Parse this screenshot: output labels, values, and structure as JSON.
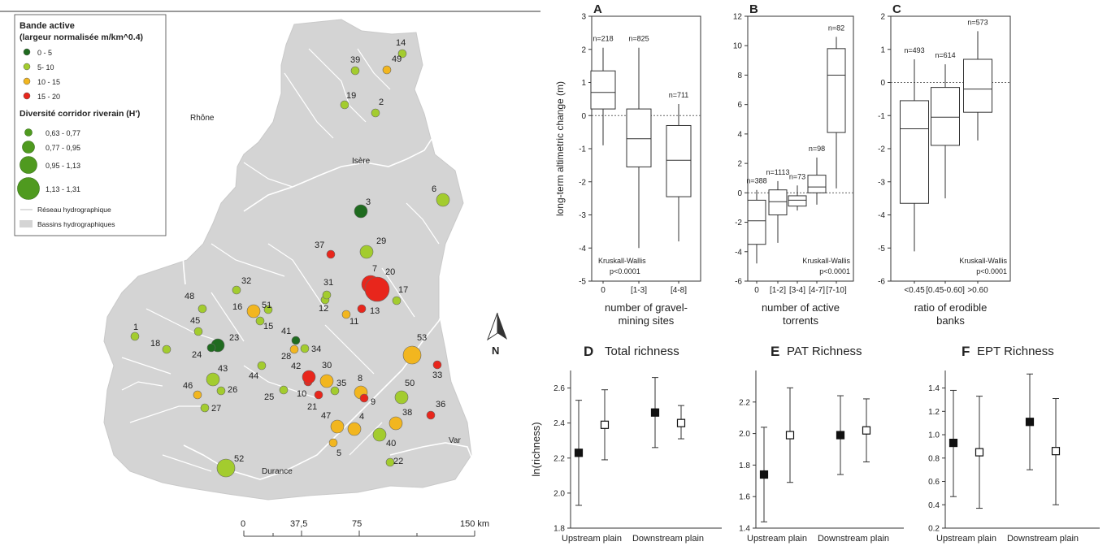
{
  "map": {
    "legend": {
      "title1": "Bande active",
      "title2": "(largeur normalisée m/km^0.4)",
      "color_items": [
        {
          "label": "0 - 5",
          "color": "#1f6b1f"
        },
        {
          "label": "5- 10",
          "color": "#a3cc2e"
        },
        {
          "label": "10 - 15",
          "color": "#f2b61f"
        },
        {
          "label": "15 - 20",
          "color": "#e8261c"
        }
      ],
      "size_title": "Diversité corridor riverain (H')",
      "size_items": [
        "0,63 - 0,77",
        "0,77 - 0,95",
        "0,95 - 1,13",
        "1,13 - 1,31"
      ],
      "network_label": "Réseau hydrographique",
      "basin_label": "Bassins hydrographiques"
    },
    "rivers": [
      "Rhône",
      "Isère",
      "Durance",
      "Var"
    ],
    "scale": {
      "ticks": [
        "0",
        "37,5",
        "75",
        "150 km"
      ]
    },
    "north": "N",
    "sites": [
      {
        "id": "1",
        "c": 1,
        "s": 0
      },
      {
        "id": "2",
        "c": 1,
        "s": 0
      },
      {
        "id": "3",
        "c": 0,
        "s": 1
      },
      {
        "id": "4",
        "c": 2,
        "s": 1
      },
      {
        "id": "5",
        "c": 2,
        "s": 0
      },
      {
        "id": "6",
        "c": 1,
        "s": 1
      },
      {
        "id": "7",
        "c": 3,
        "s": 2
      },
      {
        "id": "8",
        "c": 2,
        "s": 1
      },
      {
        "id": "9",
        "c": 3,
        "s": 0
      },
      {
        "id": "10",
        "c": 3,
        "s": 0
      },
      {
        "id": "11",
        "c": 2,
        "s": 0
      },
      {
        "id": "12",
        "c": 1,
        "s": 0
      },
      {
        "id": "13",
        "c": 3,
        "s": 0
      },
      {
        "id": "14",
        "c": 1,
        "s": 0
      },
      {
        "id": "15",
        "c": 1,
        "s": 0
      },
      {
        "id": "16",
        "c": 2,
        "s": 1
      },
      {
        "id": "17",
        "c": 1,
        "s": 0
      },
      {
        "id": "18",
        "c": 1,
        "s": 0
      },
      {
        "id": "19",
        "c": 1,
        "s": 0
      },
      {
        "id": "20",
        "c": 3,
        "s": 3
      },
      {
        "id": "21",
        "c": 3,
        "s": 0
      },
      {
        "id": "22",
        "c": 1,
        "s": 0
      },
      {
        "id": "23",
        "c": 0,
        "s": 1
      },
      {
        "id": "24",
        "c": 0,
        "s": 0
      },
      {
        "id": "25",
        "c": 1,
        "s": 0
      },
      {
        "id": "26",
        "c": 1,
        "s": 0
      },
      {
        "id": "27",
        "c": 1,
        "s": 0
      },
      {
        "id": "28",
        "c": 2,
        "s": 0
      },
      {
        "id": "29",
        "c": 1,
        "s": 1
      },
      {
        "id": "30",
        "c": 2,
        "s": 1
      },
      {
        "id": "31",
        "c": 1,
        "s": 0
      },
      {
        "id": "32",
        "c": 1,
        "s": 0
      },
      {
        "id": "33",
        "c": 3,
        "s": 0
      },
      {
        "id": "34",
        "c": 1,
        "s": 0
      },
      {
        "id": "35",
        "c": 1,
        "s": 0
      },
      {
        "id": "36",
        "c": 3,
        "s": 0
      },
      {
        "id": "37",
        "c": 3,
        "s": 0
      },
      {
        "id": "38",
        "c": 2,
        "s": 1
      },
      {
        "id": "39",
        "c": 1,
        "s": 0
      },
      {
        "id": "40",
        "c": 1,
        "s": 1
      },
      {
        "id": "41",
        "c": 0,
        "s": 0
      },
      {
        "id": "42",
        "c": 3,
        "s": 1
      },
      {
        "id": "43",
        "c": 1,
        "s": 1
      },
      {
        "id": "44",
        "c": 1,
        "s": 0
      },
      {
        "id": "45",
        "c": 1,
        "s": 0
      },
      {
        "id": "46",
        "c": 2,
        "s": 0
      },
      {
        "id": "47",
        "c": 2,
        "s": 1
      },
      {
        "id": "48",
        "c": 1,
        "s": 0
      },
      {
        "id": "49",
        "c": 2,
        "s": 0
      },
      {
        "id": "50",
        "c": 1,
        "s": 1
      },
      {
        "id": "51",
        "c": 1,
        "s": 0
      },
      {
        "id": "52",
        "c": 1,
        "s": 2
      },
      {
        "id": "53",
        "c": 2,
        "s": 2
      }
    ]
  },
  "chart_data": [
    {
      "panel": "A",
      "type": "box",
      "ylabel": "long-term altimetric change (m)",
      "xlabel": "number of gravel-mining sites",
      "ylim": [
        -5,
        3
      ],
      "yticks": [
        -5,
        -4,
        -3,
        -2,
        -1,
        0,
        1,
        2,
        3
      ],
      "reference_line": 0,
      "stat_text": [
        "Kruskall-Wallis",
        "p<0.0001"
      ],
      "categories": [
        "0",
        "[1-3]",
        "[4-8]"
      ],
      "n": [
        "n=218",
        "n=825",
        "n=711"
      ],
      "boxes": [
        {
          "min": -0.9,
          "q1": 0.2,
          "median": 0.7,
          "q3": 1.35,
          "max": 2.05
        },
        {
          "min": -4.0,
          "q1": -1.55,
          "median": -0.7,
          "q3": 0.2,
          "max": 2.05
        },
        {
          "min": -3.8,
          "q1": -2.45,
          "median": -1.35,
          "q3": -0.3,
          "max": 0.35
        }
      ]
    },
    {
      "panel": "B",
      "type": "box",
      "xlabel": "number of active torrents",
      "ylim": [
        -6,
        12
      ],
      "yticks": [
        -6,
        -4,
        -2,
        0,
        2,
        4,
        6,
        8,
        10,
        12
      ],
      "reference_line": 0,
      "stat_text": [
        "Kruskall-Wallis",
        "p<0.0001"
      ],
      "categories": [
        "0",
        "[1-2]",
        "[3-4]",
        "[4-7]",
        "[7-10]"
      ],
      "n": [
        "n=388",
        "n=1113",
        "n=73",
        "n=98",
        "n=82"
      ],
      "boxes": [
        {
          "min": -4.8,
          "q1": -3.5,
          "median": -1.9,
          "q3": -0.5,
          "max": 0.2
        },
        {
          "min": -3.4,
          "q1": -1.5,
          "median": -0.6,
          "q3": 0.2,
          "max": 0.8
        },
        {
          "min": -1.2,
          "q1": -0.9,
          "median": -0.5,
          "q3": -0.2,
          "max": 0.5
        },
        {
          "min": -0.8,
          "q1": 0.0,
          "median": 0.4,
          "q3": 1.2,
          "max": 2.4
        },
        {
          "min": 0.3,
          "q1": 4.1,
          "median": 8.0,
          "q3": 9.8,
          "max": 10.6
        }
      ]
    },
    {
      "panel": "C",
      "type": "box",
      "xlabel": "ratio of erodible banks",
      "ylim": [
        -6,
        2
      ],
      "yticks": [
        -6,
        -5,
        -4,
        -3,
        -2,
        -1,
        0,
        1,
        2
      ],
      "reference_line": 0,
      "stat_text": [
        "Kruskall-Wallis",
        "p<0.0001"
      ],
      "categories": [
        "<0.45",
        "[0.45-0.60]",
        ">0.60"
      ],
      "n": [
        "n=493",
        "n=614",
        "n=573"
      ],
      "boxes": [
        {
          "min": -5.1,
          "q1": -3.65,
          "median": -1.4,
          "q3": -0.55,
          "max": 0.7
        },
        {
          "min": -3.5,
          "q1": -1.9,
          "median": -1.05,
          "q3": -0.15,
          "max": 0.55
        },
        {
          "min": -1.75,
          "q1": -0.9,
          "median": -0.2,
          "q3": 0.7,
          "max": 1.55
        }
      ]
    },
    {
      "panel": "D",
      "type": "scatter",
      "title": "Total richness",
      "ylabel": "ln(richness)",
      "ylim": [
        1.8,
        2.7
      ],
      "yticks": [
        1.8,
        2.0,
        2.2,
        2.4,
        2.6
      ],
      "categories": [
        "Upstream plain",
        "Downstream plain"
      ],
      "points": [
        {
          "group": "Upstream plain",
          "filled": true,
          "mean": 2.23,
          "low": 1.93,
          "high": 2.53
        },
        {
          "group": "Upstream plain",
          "filled": false,
          "mean": 2.39,
          "low": 2.19,
          "high": 2.59
        },
        {
          "group": "Downstream plain",
          "filled": true,
          "mean": 2.46,
          "low": 2.26,
          "high": 2.66
        },
        {
          "group": "Downstream plain",
          "filled": false,
          "mean": 2.4,
          "low": 2.31,
          "high": 2.5
        }
      ]
    },
    {
      "panel": "E",
      "type": "scatter",
      "title": "PAT Richness",
      "ylim": [
        1.4,
        2.4
      ],
      "yticks": [
        1.4,
        1.6,
        1.8,
        2.0,
        2.2
      ],
      "categories": [
        "Upstream plain",
        "Downstream plain"
      ],
      "points": [
        {
          "group": "Upstream plain",
          "filled": true,
          "mean": 1.74,
          "low": 1.44,
          "high": 2.04
        },
        {
          "group": "Upstream plain",
          "filled": false,
          "mean": 1.99,
          "low": 1.69,
          "high": 2.29
        },
        {
          "group": "Downstream plain",
          "filled": true,
          "mean": 1.99,
          "low": 1.74,
          "high": 2.24
        },
        {
          "group": "Downstream plain",
          "filled": false,
          "mean": 2.02,
          "low": 1.82,
          "high": 2.22
        }
      ]
    },
    {
      "panel": "F",
      "type": "scatter",
      "title": "EPT Richness",
      "ylim": [
        0.2,
        1.55
      ],
      "yticks": [
        0.2,
        0.4,
        0.6,
        0.8,
        1.0,
        1.2,
        1.4
      ],
      "categories": [
        "Upstream plain",
        "Downstream plain"
      ],
      "points": [
        {
          "group": "Upstream plain",
          "filled": true,
          "mean": 0.93,
          "low": 0.47,
          "high": 1.38
        },
        {
          "group": "Upstream plain",
          "filled": false,
          "mean": 0.85,
          "low": 0.37,
          "high": 1.33
        },
        {
          "group": "Downstream plain",
          "filled": true,
          "mean": 1.11,
          "low": 0.7,
          "high": 1.52
        },
        {
          "group": "Downstream plain",
          "filled": false,
          "mean": 0.86,
          "low": 0.4,
          "high": 1.31
        }
      ]
    }
  ]
}
